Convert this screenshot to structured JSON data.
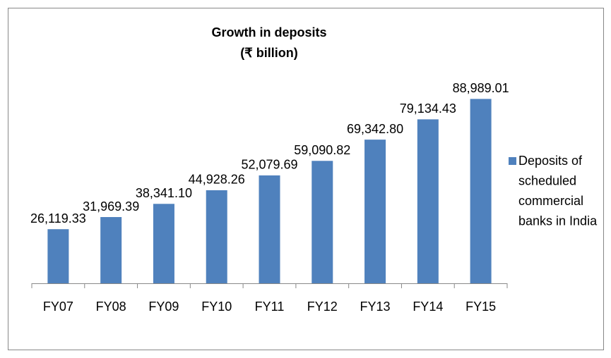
{
  "chart_data": {
    "type": "bar",
    "title": "Growth in deposits",
    "subtitle": "(₹ billion)",
    "categories": [
      "FY07",
      "FY08",
      "FY09",
      "FY10",
      "FY11",
      "FY12",
      "FY13",
      "FY14",
      "FY15"
    ],
    "series": [
      {
        "name": "Deposits of scheduled commercial banks in India",
        "color": "#4f81bd",
        "values": [
          26119.33,
          31969.39,
          38341.1,
          44928.26,
          52079.69,
          59090.82,
          69342.8,
          79134.43,
          88989.01
        ],
        "value_labels": [
          "26,119.33",
          "31,969.39",
          "38,341.10",
          "44,928.26",
          "52,079.69",
          "59,090.82",
          "69,342.80",
          "79,134.43",
          "88,989.01"
        ]
      }
    ],
    "ylim": [
      0,
      100000
    ],
    "legend": "right"
  }
}
